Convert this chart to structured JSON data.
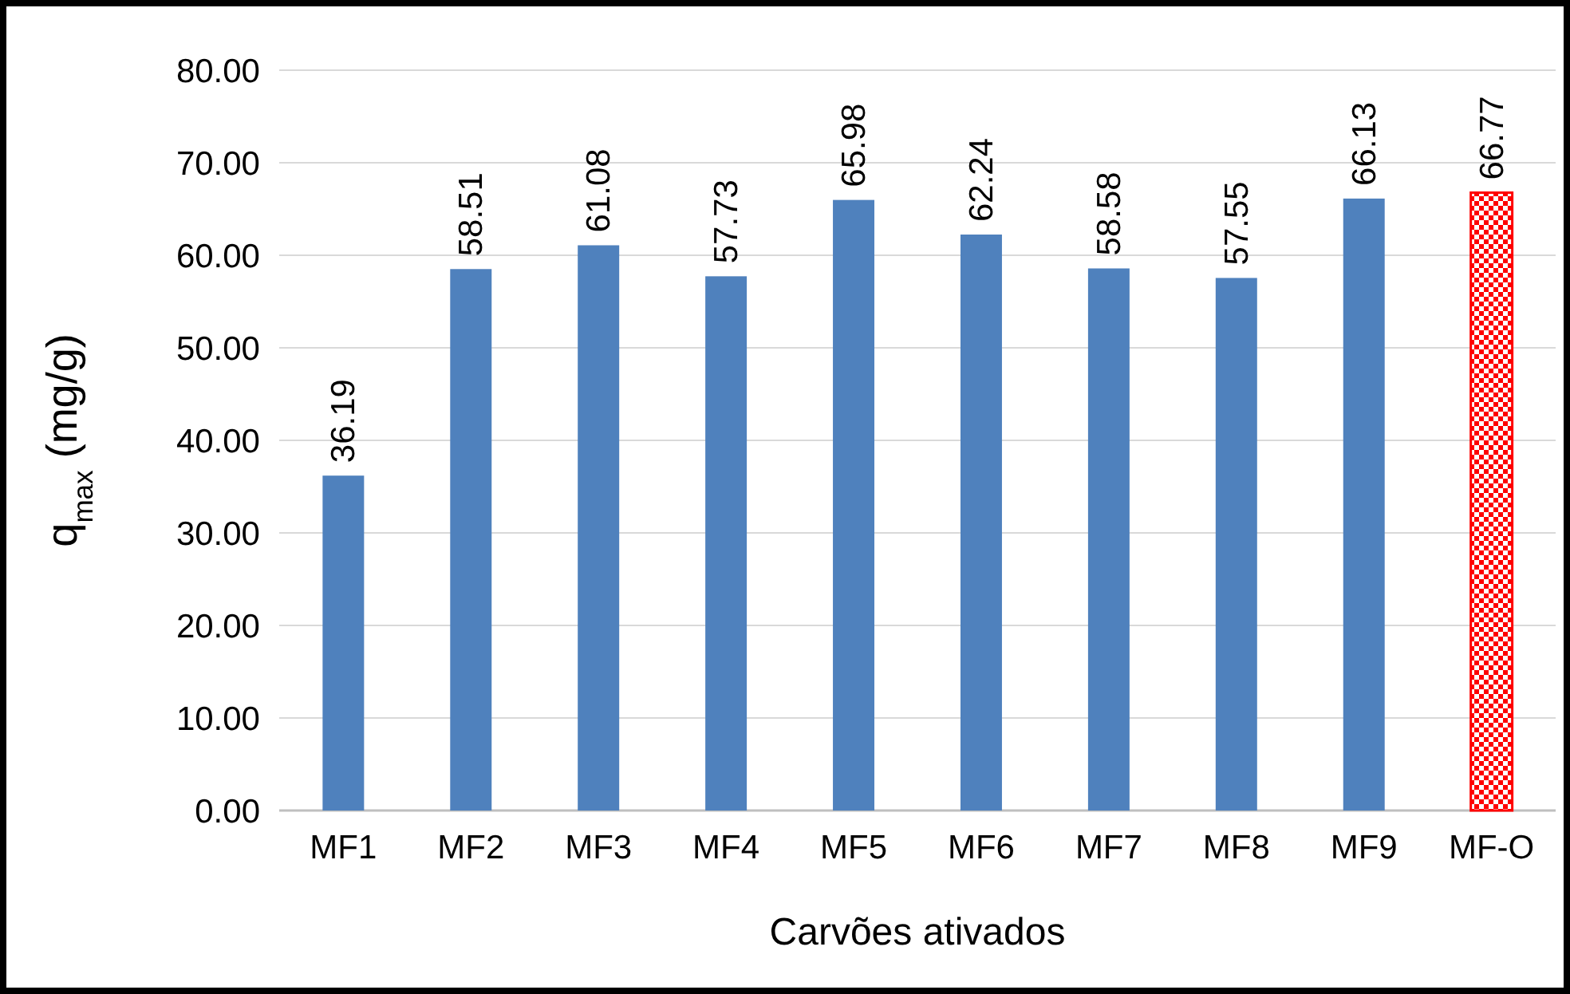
{
  "chart_data": {
    "type": "bar",
    "xlabel": "Carvões ativados",
    "ylabel": "q$_{max}$ (mg/g)",
    "categories": [
      "MF1",
      "MF2",
      "MF3",
      "MF4",
      "MF5",
      "MF6",
      "MF7",
      "MF8",
      "MF9",
      "MF-O"
    ],
    "values": [
      36.19,
      58.51,
      61.08,
      57.73,
      65.98,
      62.24,
      58.58,
      57.55,
      66.13,
      66.77
    ],
    "colors": [
      "#4f81bd",
      "#4f81bd",
      "#4f81bd",
      "#4f81bd",
      "#4f81bd",
      "#4f81bd",
      "#4f81bd",
      "#4f81bd",
      "#4f81bd",
      "#ff0000"
    ],
    "ylim": [
      0,
      80
    ],
    "yticks": [
      {
        "value": 0,
        "label": "0.00"
      },
      {
        "value": 10,
        "label": "10.00"
      },
      {
        "value": 20,
        "label": "20.00"
      },
      {
        "value": 30,
        "label": "30.00"
      },
      {
        "value": 40,
        "label": "40.00"
      },
      {
        "value": 50,
        "label": "50.00"
      },
      {
        "value": 60,
        "label": "60.00"
      },
      {
        "value": 70,
        "label": "70.00"
      },
      {
        "value": 80,
        "label": "80.00"
      }
    ],
    "grid": "y",
    "data_labels": true
  }
}
